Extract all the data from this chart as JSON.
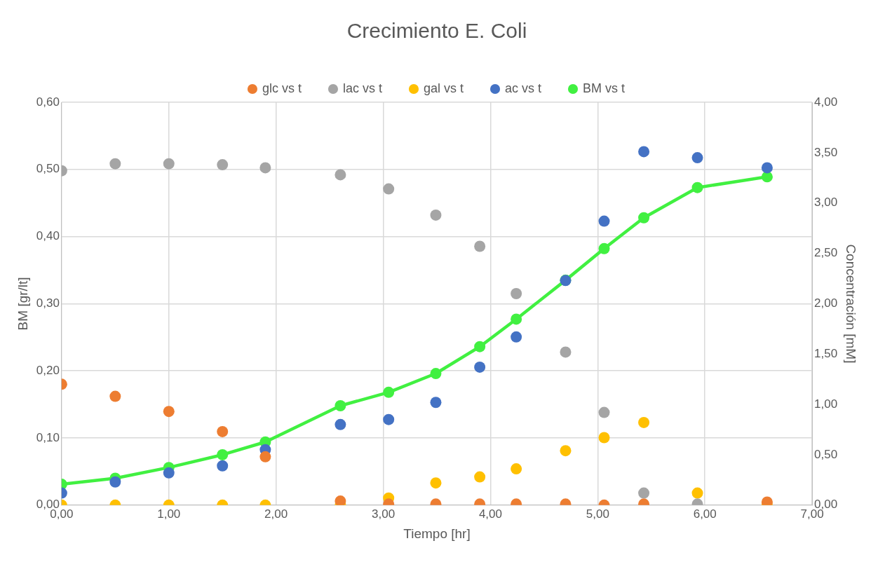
{
  "chart_data": {
    "type": "scatter",
    "title": "Crecimiento E. Coli",
    "xlabel": "Tiempo [hr]",
    "ylabel": "BM [gr/lt]",
    "y2label": "Concentración [mM]",
    "x": [
      0,
      0.5,
      1.0,
      1.5,
      1.9,
      2.6,
      3.05,
      3.49,
      3.9,
      4.24,
      4.7,
      5.06,
      5.43,
      5.93,
      6.58
    ],
    "series": [
      {
        "type": "line",
        "name": "BM vs t",
        "color": "#41f041",
        "values": [
          0.031,
          0.04,
          0.056,
          0.075,
          0.094,
          0.148,
          0.168,
          0.196,
          0.236,
          0.277,
          0.335,
          0.382,
          0.428,
          0.473,
          0.489
        ]
      },
      {
        "type": "scatter",
        "axis": "y2",
        "name": "glc vs t",
        "color": "#ed7d31",
        "values": [
          1.2,
          1.08,
          0.93,
          0.73,
          0.48,
          0.04,
          0.01,
          0.01,
          0.01,
          0.01,
          0.01,
          0,
          0.01,
          null,
          0.03
        ]
      },
      {
        "type": "scatter",
        "axis": "y2",
        "name": "lac vs t",
        "color": "#a5a5a5",
        "values": [
          3.32,
          3.39,
          3.39,
          3.38,
          3.35,
          3.28,
          3.14,
          2.88,
          2.57,
          2.1,
          1.52,
          0.92,
          0.12,
          0.01,
          null
        ]
      },
      {
        "type": "scatter",
        "axis": "y2",
        "name": "gal vs t",
        "color": "#ffc000",
        "values": [
          0,
          0,
          0,
          0,
          0,
          0,
          0.07,
          0.22,
          0.28,
          0.36,
          0.54,
          0.67,
          0.82,
          0.12,
          0
        ]
      },
      {
        "type": "scatter",
        "axis": "y2",
        "name": "ac vs t",
        "color": "#4472c4",
        "values": [
          0.12,
          0.23,
          0.32,
          0.39,
          0.55,
          0.8,
          0.85,
          1.02,
          1.37,
          1.67,
          2.23,
          2.82,
          3.51,
          3.45,
          3.35
        ]
      }
    ],
    "xlim": [
      0,
      7
    ],
    "xticks": [
      {
        "value": 0,
        "label": "0,00"
      },
      {
        "value": 1,
        "label": "1,00"
      },
      {
        "value": 2,
        "label": "2,00"
      },
      {
        "value": 3,
        "label": "3,00"
      },
      {
        "value": 4,
        "label": "4,00"
      },
      {
        "value": 5,
        "label": "5,00"
      },
      {
        "value": 6,
        "label": "6,00"
      },
      {
        "value": 7,
        "label": "7,00"
      }
    ],
    "ylim": [
      0,
      0.6
    ],
    "yticks": [
      {
        "value": 0,
        "label": "0,00"
      },
      {
        "value": 0.1,
        "label": "0,10"
      },
      {
        "value": 0.2,
        "label": "0,20"
      },
      {
        "value": 0.3,
        "label": "0,30"
      },
      {
        "value": 0.4,
        "label": "0,40"
      },
      {
        "value": 0.5,
        "label": "0,50"
      },
      {
        "value": 0.6,
        "label": "0,60"
      }
    ],
    "y2lim": [
      0,
      4
    ],
    "y2ticks": [
      {
        "value": 0,
        "label": "0,00"
      },
      {
        "value": 0.5,
        "label": "0,50"
      },
      {
        "value": 1,
        "label": "1,00"
      },
      {
        "value": 1.5,
        "label": "1,50"
      },
      {
        "value": 2,
        "label": "2,00"
      },
      {
        "value": 2.5,
        "label": "2,50"
      },
      {
        "value": 3,
        "label": "3,00"
      },
      {
        "value": 3.5,
        "label": "3,50"
      },
      {
        "value": 4,
        "label": "4,00"
      }
    ],
    "grid": true,
    "legend": "top",
    "marker": "circle",
    "line_style": "solid"
  }
}
